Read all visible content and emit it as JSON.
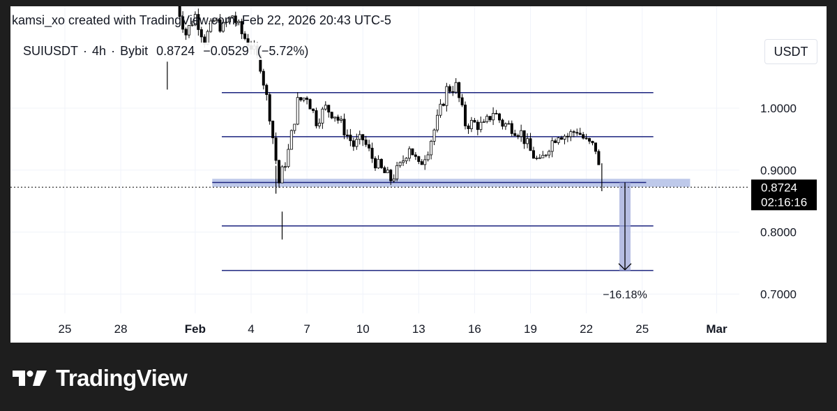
{
  "header": {
    "text": "kamsi_xo created with TradingView.com, Feb 22, 2026 20:43 UTC-5"
  },
  "legend": {
    "symbol": "SUIUSDT",
    "interval": "4h",
    "exchange": "Bybit",
    "last": "0.8724",
    "change": "−0.0529",
    "change_pct": "(−5.72%)",
    "separator": "·"
  },
  "currency": "USDT",
  "price_label": {
    "value": "0.8724",
    "countdown": "02:16:16"
  },
  "measure_label": "−16.18%",
  "brand": {
    "name": "TradingView",
    "logo_icon": "tradingview-logo-icon"
  },
  "colors": {
    "level_lines": "#1a237e",
    "zone": "#b3bfe6",
    "measure": "#9fa8da",
    "candle": "#000000",
    "price_label_bg": "#000000",
    "background_outer": "#1e1e1e"
  },
  "chart_data": {
    "type": "candlestick",
    "symbol": "SUIUSDT",
    "interval": "4h",
    "y_axis": {
      "ticks": [
        1.0,
        0.9,
        0.8,
        0.7
      ],
      "tick_labels": [
        "1.0000",
        "0.9000",
        "0.8000",
        "0.7000"
      ],
      "range": [
        0.67,
        1.15
      ]
    },
    "x_axis": {
      "tick_labels": [
        "25",
        "28",
        "Feb",
        "4",
        "7",
        "10",
        "13",
        "16",
        "19",
        "22",
        "25",
        "Mar"
      ],
      "tick_dates": [
        "2026-01-25",
        "2026-01-28",
        "2026-02-01",
        "2026-02-04",
        "2026-02-07",
        "2026-02-10",
        "2026-02-13",
        "2026-02-16",
        "2026-02-19",
        "2026-02-22",
        "2026-02-25",
        "2026-03-01"
      ]
    },
    "horizontal_levels": [
      1.025,
      0.954,
      0.81,
      0.738
    ],
    "support_zone": {
      "from": 0.873,
      "to": 0.886,
      "start": "2026-02-03",
      "end": "2026-02-26"
    },
    "support_line": 0.88,
    "measure": {
      "start_price": 0.88,
      "end_price": 0.738,
      "date": "2026-02-24",
      "label": "−16.18%"
    },
    "last_price": 0.8724,
    "path": [
      [
        "2026-01-31T00:00",
        1.17
      ],
      [
        "2026-01-31T12:00",
        1.12
      ],
      [
        "2026-02-01T00:00",
        1.15
      ],
      [
        "2026-02-01T12:00",
        1.11
      ],
      [
        "2026-02-02T00:00",
        1.14
      ],
      [
        "2026-02-02T12:00",
        1.13
      ],
      [
        "2026-02-03T00:00",
        1.15
      ],
      [
        "2026-02-03T12:00",
        1.12
      ],
      [
        "2026-02-04T00:00",
        1.1
      ],
      [
        "2026-02-04T12:00",
        1.07
      ],
      [
        "2026-02-05T00:00",
        0.99
      ],
      [
        "2026-02-05T12:00",
        0.88
      ],
      [
        "2026-02-06T00:00",
        0.93
      ],
      [
        "2026-02-06T12:00",
        1.01
      ],
      [
        "2026-02-07T00:00",
        1.02
      ],
      [
        "2026-02-07T12:00",
        0.98
      ],
      [
        "2026-02-08T00:00",
        1.0
      ],
      [
        "2026-02-08T12:00",
        0.99
      ],
      [
        "2026-02-09T00:00",
        0.965
      ],
      [
        "2026-02-09T12:00",
        0.94
      ],
      [
        "2026-02-10T00:00",
        0.95
      ],
      [
        "2026-02-10T12:00",
        0.92
      ],
      [
        "2026-02-11T00:00",
        0.9
      ],
      [
        "2026-02-11T12:00",
        0.885
      ],
      [
        "2026-02-12T00:00",
        0.905
      ],
      [
        "2026-02-12T12:00",
        0.94
      ],
      [
        "2026-02-13T00:00",
        0.905
      ],
      [
        "2026-02-13T12:00",
        0.935
      ],
      [
        "2026-02-14T00:00",
        0.98
      ],
      [
        "2026-02-14T12:00",
        1.03
      ],
      [
        "2026-02-15T00:00",
        1.035
      ],
      [
        "2026-02-15T12:00",
        0.975
      ],
      [
        "2026-02-16T00:00",
        0.975
      ],
      [
        "2026-02-16T12:00",
        0.97
      ],
      [
        "2026-02-17T00:00",
        0.995
      ],
      [
        "2026-02-17T12:00",
        0.975
      ],
      [
        "2026-02-18T00:00",
        0.97
      ],
      [
        "2026-02-18T12:00",
        0.96
      ],
      [
        "2026-02-19T00:00",
        0.93
      ],
      [
        "2026-02-19T12:00",
        0.91
      ],
      [
        "2026-02-20T00:00",
        0.94
      ],
      [
        "2026-02-20T12:00",
        0.96
      ],
      [
        "2026-02-21T00:00",
        0.955
      ],
      [
        "2026-02-21T12:00",
        0.965
      ],
      [
        "2026-02-22T00:00",
        0.945
      ],
      [
        "2026-02-22T12:00",
        0.935
      ],
      [
        "2026-02-22T20:00",
        0.8724
      ]
    ],
    "wicks": [
      {
        "date": "2026-01-30T12:00",
        "low": 1.03
      },
      {
        "date": "2026-02-05T16:00",
        "low": 0.788
      },
      {
        "date": "2026-02-05T08:00",
        "low": 0.862
      },
      {
        "date": "2026-02-22T20:00",
        "low": 0.866
      }
    ]
  }
}
